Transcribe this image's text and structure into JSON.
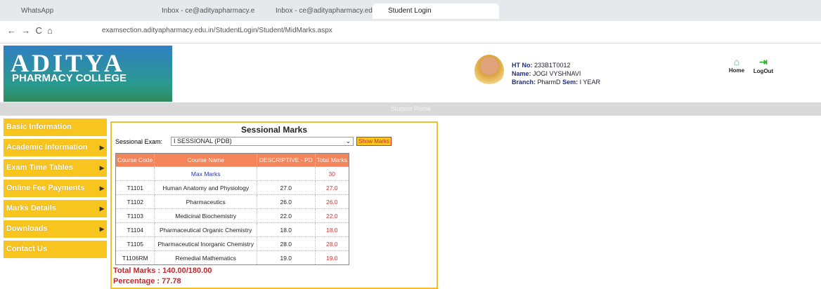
{
  "browser": {
    "tabs": [
      "WhatsApp",
      "Inbox - ce@adityapharmacy.e",
      "Inbox - ce@adityapharmacy.ed",
      "Student Login"
    ],
    "url": "examsection.adityapharmacy.edu.in/StudentLogin/Student/MidMarks.aspx"
  },
  "header": {
    "logo_title": "ADITYA",
    "logo_subtitle": "PHARMACY COLLEGE",
    "ht_no_label": "HT No:",
    "ht_no": "233B1T0012",
    "name_label": "Name:",
    "name": "JOGI VYSHNAVI",
    "branch_label": "Branch:",
    "branch": "PharmD",
    "sem_label": "Sem:",
    "sem": "I YEAR",
    "home": "Home",
    "logout": "LogOut",
    "banner": "Student Portal"
  },
  "menu": [
    "Basic Information",
    "Academic Information",
    "Exam Time Tables",
    "Online Fee Payments",
    "Marks Details",
    "Downloads",
    "Contact Us"
  ],
  "panel": {
    "title": "Sessional Marks",
    "exam_label": "Sessional Exam:",
    "exam_selected": "I SESSIONAL (PDB)",
    "button": "Show Marks",
    "table": {
      "headers": [
        "Course Code",
        "Course Name",
        "DESCRIPTIVE - PD",
        "Total Marks"
      ],
      "max_row": {
        "label": "Max Marks",
        "total": "30"
      },
      "rows": [
        [
          "T1101",
          "Human Anatomy and Physiology",
          "27.0",
          "27.0"
        ],
        [
          "T1102",
          "Pharmaceutics",
          "26.0",
          "26.0"
        ],
        [
          "T1103",
          "Medicinal Biochemistry",
          "22.0",
          "22.0"
        ],
        [
          "T1104",
          "Pharmaceutical Organic Chemistry",
          "18.0",
          "18.0"
        ],
        [
          "T1105",
          "Pharmaceutical Inorganic Chemistry",
          "28.0",
          "28.0"
        ],
        [
          "T1106RM",
          "Remedial Mathematics",
          "19.0",
          "19.0"
        ]
      ]
    },
    "total_marks": "Total Marks : 140.00/180.00",
    "percentage": "Percentage : 77.78"
  }
}
